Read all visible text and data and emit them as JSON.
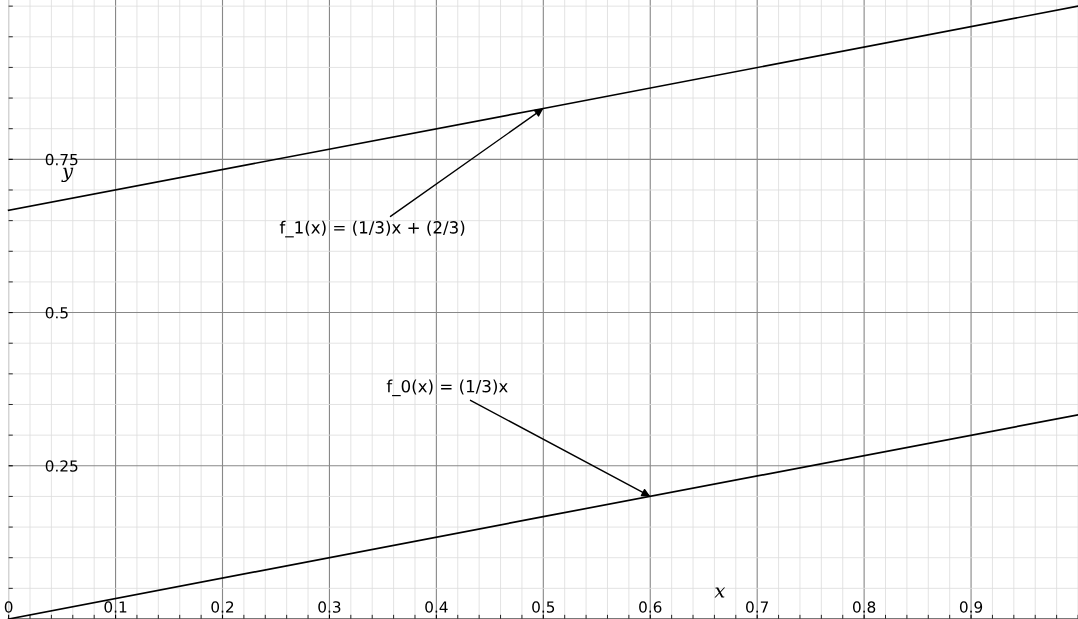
{
  "chart_data": {
    "type": "line",
    "xlabel": "x",
    "ylabel": "y",
    "xlim": [
      0,
      1
    ],
    "ylim": [
      0,
      1.01
    ],
    "xticks": [
      0,
      0.1,
      0.2,
      0.3,
      0.4,
      0.5,
      0.6,
      0.7,
      0.8,
      0.9
    ],
    "yticks": [
      0.25,
      0.5,
      0.75
    ],
    "grid": true,
    "series": [
      {
        "color": "#000000",
        "x": [
          0,
          0.5,
          1
        ],
        "values": [
          0.667,
          0.833,
          1.0
        ]
      },
      {
        "color": "#000000",
        "x": [
          0,
          0.5,
          1
        ],
        "values": [
          0,
          0.167,
          0.333
        ]
      }
    ],
    "annotations": [
      {
        "text": "f_1(x) = (1/3)x + (2/3)",
        "x": 0.5,
        "y": 0.833
      },
      {
        "text": "f_0(x) = (1/3)x",
        "x": 0.6,
        "y": 0.2
      }
    ]
  }
}
